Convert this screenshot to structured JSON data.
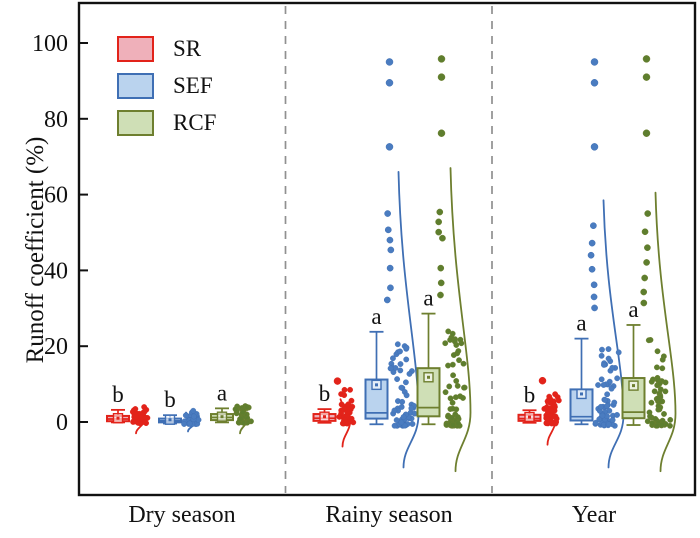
{
  "figure": {
    "ylabel": "Runoff coefficient (%)",
    "legend": [
      {
        "label": "SR",
        "fill": "#efb0ba",
        "stroke": "#e2231a"
      },
      {
        "label": "SEF",
        "fill": "#bad3ee",
        "stroke": "#3f6fb4"
      },
      {
        "label": "RCF",
        "fill": "#cfdfb6",
        "stroke": "#6e7f2f"
      }
    ]
  },
  "chart_data": {
    "type": "box",
    "title": "",
    "xlabel": "",
    "ylabel": "Runoff coefficient (%)",
    "categories": [
      "Dry season",
      "Rainy season",
      "Year"
    ],
    "yticks": [
      0,
      20,
      40,
      60,
      80,
      100
    ],
    "ylim": [
      -19,
      110
    ],
    "grid": false,
    "legend_position": "top-left",
    "separator_color": "#909090",
    "axis_color": "#111111",
    "series": [
      {
        "name": "SR",
        "stroke": "#e2231a",
        "fill": "#efb0ba",
        "point": "#e2231a"
      },
      {
        "name": "SEF",
        "stroke": "#3f6fb4",
        "fill": "#bad3ee",
        "point": "#4a7cc0"
      },
      {
        "name": "RCF",
        "stroke": "#6e7f2f",
        "fill": "#cfdfb6",
        "point": "#5e7e2e"
      }
    ],
    "groups": [
      {
        "category": "Dry season",
        "boxes": [
          {
            "series": "SR",
            "sig": "b",
            "q1": 0.2,
            "median": 0.8,
            "q3": 1.6,
            "whisker_low": -0.1,
            "whisker_high": 3.2,
            "mean": 1.0,
            "outliers": [],
            "scatter_high": [],
            "cluster": {
              "count": 36,
              "min": -0.3,
              "max": 4.3
            },
            "curve": {
              "top": 3.5,
              "peak": 0.5,
              "bottom": -3
            }
          },
          {
            "series": "SEF",
            "sig": "b",
            "q1": -0.1,
            "median": 0.3,
            "q3": 0.9,
            "whisker_low": -0.4,
            "whisker_high": 1.8,
            "mean": 0.6,
            "outliers": [],
            "scatter_high": [],
            "cluster": {
              "count": 32,
              "min": -0.6,
              "max": 3.6
            },
            "curve": {
              "top": 2.5,
              "peak": 0.2,
              "bottom": -2.5
            }
          },
          {
            "series": "RCF",
            "sig": "a",
            "q1": 0.5,
            "median": 1.2,
            "q3": 2.1,
            "whisker_low": -0.1,
            "whisker_high": 3.6,
            "mean": 1.4,
            "outliers": [],
            "scatter_high": [],
            "cluster": {
              "count": 36,
              "min": -0.2,
              "max": 4.6
            },
            "curve": {
              "top": 4.0,
              "peak": 1.0,
              "bottom": -3
            }
          }
        ]
      },
      {
        "category": "Rainy season",
        "boxes": [
          {
            "series": "SR",
            "sig": "b",
            "q1": 0.3,
            "median": 1.0,
            "q3": 2.1,
            "whisker_low": -0.2,
            "whisker_high": 3.4,
            "mean": 1.4,
            "outliers": [
              10.8
            ],
            "scatter_high": [],
            "cluster": {
              "count": 48,
              "min": -0.4,
              "max": 9.0
            },
            "curve": {
              "top": 6.0,
              "peak": 0.8,
              "bottom": -6.5
            }
          },
          {
            "series": "SEF",
            "sig": "a",
            "q1": 0.9,
            "median": 2.4,
            "q3": 11.2,
            "whisker_low": -0.6,
            "whisker_high": 23.8,
            "mean": 9.8,
            "outliers": [
              72.6,
              89.5,
              95.0
            ],
            "scatter_high": [
              32.2,
              35.4,
              40.6,
              45.4,
              48.0,
              50.7,
              55.0
            ],
            "cluster": {
              "count": 60,
              "min": -1.0,
              "max": 22.0
            },
            "curve": {
              "top": 66.0,
              "peak": 2.0,
              "bottom": -12
            }
          },
          {
            "series": "RCF",
            "sig": "a",
            "q1": 1.5,
            "median": 3.8,
            "q3": 14.2,
            "whisker_low": -0.6,
            "whisker_high": 28.6,
            "mean": 11.8,
            "outliers": [
              76.2,
              91.0,
              95.8
            ],
            "scatter_high": [
              33.5,
              36.7,
              40.6,
              48.5,
              50.1,
              52.8,
              55.4
            ],
            "cluster": {
              "count": 60,
              "min": -1.0,
              "max": 25.0
            },
            "curve": {
              "top": 67.0,
              "peak": 2.5,
              "bottom": -13
            }
          }
        ]
      },
      {
        "category": "Year",
        "boxes": [
          {
            "series": "SR",
            "sig": "b",
            "q1": 0.3,
            "median": 0.9,
            "q3": 1.9,
            "whisker_low": -0.2,
            "whisker_high": 3.1,
            "mean": 1.3,
            "outliers": [
              10.9
            ],
            "scatter_high": [],
            "cluster": {
              "count": 48,
              "min": -0.4,
              "max": 7.5
            },
            "curve": {
              "top": 5.5,
              "peak": 0.8,
              "bottom": -6
            }
          },
          {
            "series": "SEF",
            "sig": "a",
            "q1": 0.4,
            "median": 1.4,
            "q3": 8.6,
            "whisker_low": -0.6,
            "whisker_high": 22.0,
            "mean": 7.4,
            "outliers": [
              72.6,
              89.5,
              95.0
            ],
            "scatter_high": [
              30.1,
              33.0,
              36.2,
              40.3,
              44.0,
              47.2,
              51.8
            ],
            "cluster": {
              "count": 60,
              "min": -1.0,
              "max": 20.0
            },
            "curve": {
              "top": 58.5,
              "peak": 1.8,
              "bottom": -12
            }
          },
          {
            "series": "RCF",
            "sig": "a",
            "q1": 1.0,
            "median": 2.6,
            "q3": 11.6,
            "whisker_low": -0.8,
            "whisker_high": 25.6,
            "mean": 9.6,
            "outliers": [
              76.2,
              91.0,
              95.8
            ],
            "scatter_high": [
              31.4,
              34.3,
              38.0,
              42.1,
              46.0,
              50.2,
              55.0
            ],
            "cluster": {
              "count": 60,
              "min": -1.0,
              "max": 22.0
            },
            "curve": {
              "top": 60.5,
              "peak": 2.2,
              "bottom": -13
            }
          }
        ]
      }
    ]
  }
}
